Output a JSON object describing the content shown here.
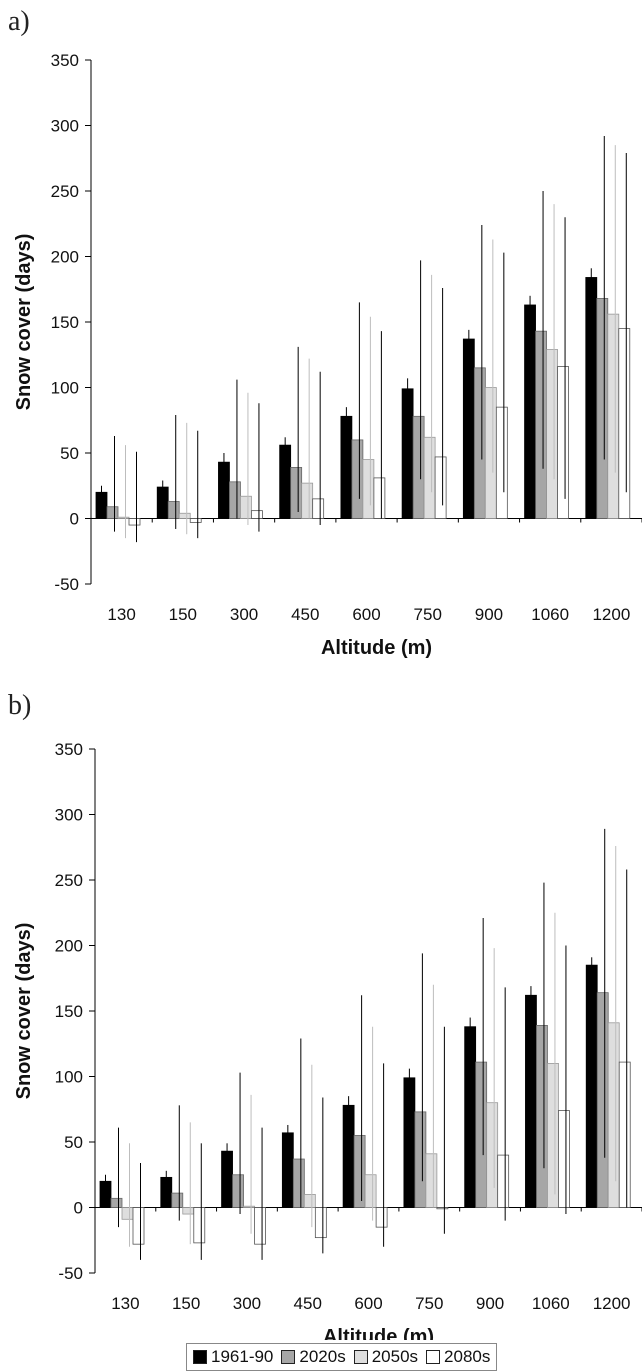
{
  "colors": {
    "s1961": "#000000",
    "s2020": "#a6a6a6",
    "s2050": "#dedede",
    "s2080": "#ffffff"
  },
  "legend": {
    "items": [
      "1961-90",
      "2020s",
      "2050s",
      "2080s"
    ]
  },
  "chart_data": [
    {
      "panel": "a)",
      "type": "bar",
      "xlabel": "Altitude (m)",
      "ylabel": "Snow cover (days)",
      "ylim": [
        -50,
        350
      ],
      "yticks": [
        350,
        300,
        250,
        200,
        150,
        100,
        50,
        0,
        -50
      ],
      "categories": [
        "130",
        "150",
        "300",
        "450",
        "600",
        "750",
        "900",
        "1060",
        "1200"
      ],
      "series": [
        {
          "name": "1961-90",
          "values": [
            20,
            24,
            43,
            56,
            78,
            99,
            137,
            163,
            184
          ],
          "err_low": [
            15,
            19,
            37,
            50,
            71,
            92,
            130,
            157,
            178
          ],
          "err_high": [
            25,
            29,
            50,
            62,
            85,
            107,
            144,
            170,
            191
          ]
        },
        {
          "name": "2020s",
          "values": [
            9,
            13,
            28,
            39,
            60,
            78,
            115,
            143,
            168
          ],
          "err_low": [
            -10,
            -8,
            0,
            5,
            15,
            30,
            45,
            38,
            45
          ],
          "err_high": [
            63,
            79,
            106,
            131,
            165,
            197,
            224,
            250,
            292
          ]
        },
        {
          "name": "2050s",
          "values": [
            1,
            4,
            17,
            27,
            45,
            62,
            100,
            129,
            156
          ],
          "err_low": [
            -15,
            -12,
            -5,
            0,
            10,
            20,
            35,
            30,
            35
          ],
          "err_high": [
            56,
            73,
            96,
            122,
            154,
            186,
            213,
            240,
            285
          ]
        },
        {
          "name": "2080s",
          "values": [
            -5,
            -3,
            6,
            15,
            31,
            47,
            85,
            116,
            145
          ],
          "err_low": [
            -18,
            -15,
            -10,
            -5,
            0,
            10,
            20,
            15,
            20
          ],
          "err_high": [
            51,
            67,
            88,
            112,
            143,
            176,
            203,
            230,
            279
          ]
        }
      ]
    },
    {
      "panel": "b)",
      "type": "bar",
      "xlabel": "Altitude (m)",
      "ylabel": "Snow cover (days)",
      "ylim": [
        -50,
        350
      ],
      "yticks": [
        350,
        300,
        250,
        200,
        150,
        100,
        50,
        0,
        -50
      ],
      "categories": [
        "130",
        "150",
        "300",
        "450",
        "600",
        "750",
        "900",
        "1060",
        "1200"
      ],
      "series": [
        {
          "name": "1961-90",
          "values": [
            20,
            23,
            43,
            57,
            78,
            99,
            138,
            162,
            185
          ],
          "err_low": [
            15,
            18,
            37,
            51,
            71,
            92,
            131,
            156,
            179
          ],
          "err_high": [
            25,
            28,
            49,
            63,
            85,
            106,
            145,
            169,
            191
          ]
        },
        {
          "name": "2020s",
          "values": [
            7,
            11,
            25,
            37,
            55,
            73,
            111,
            139,
            164
          ],
          "err_low": [
            -15,
            -10,
            -5,
            0,
            5,
            20,
            40,
            30,
            38
          ],
          "err_high": [
            61,
            78,
            103,
            129,
            162,
            194,
            221,
            248,
            289
          ]
        },
        {
          "name": "2050s",
          "values": [
            -9,
            -5,
            1,
            10,
            25,
            41,
            80,
            110,
            141
          ],
          "err_low": [
            -30,
            -28,
            -20,
            -15,
            -10,
            0,
            15,
            10,
            20
          ],
          "err_high": [
            49,
            65,
            86,
            109,
            138,
            170,
            198,
            225,
            276
          ]
        },
        {
          "name": "2080s",
          "values": [
            -28,
            -27,
            -28,
            -23,
            -15,
            -1,
            40,
            74,
            111
          ],
          "err_low": [
            -40,
            -40,
            -40,
            -35,
            -30,
            -20,
            -10,
            -5,
            0
          ],
          "err_high": [
            34,
            49,
            61,
            84,
            110,
            138,
            168,
            200,
            258
          ]
        }
      ]
    }
  ]
}
